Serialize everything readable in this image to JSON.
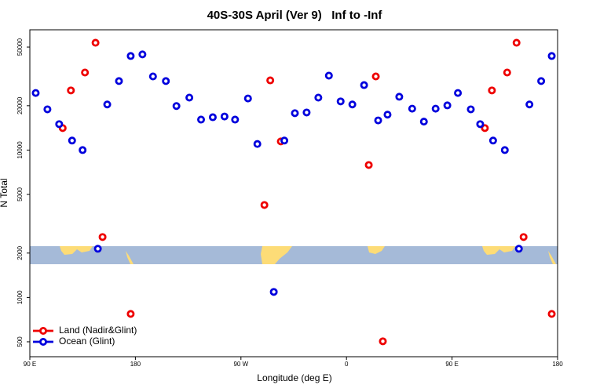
{
  "chart_data": {
    "type": "scatter",
    "title": "40S-30S April (Ver 9)   Inf to -Inf",
    "x_label": "Longitude (deg E)",
    "y_label": "N Total",
    "xlim": [
      90,
      540
    ],
    "xticks": [
      {
        "value": 90,
        "label": "90 E"
      },
      {
        "value": 180,
        "label": "180"
      },
      {
        "value": 270,
        "label": "90 W"
      },
      {
        "value": 360,
        "label": "0"
      },
      {
        "value": 450,
        "label": "90 E"
      },
      {
        "value": 540,
        "label": "180"
      }
    ],
    "ylim": [
      396,
      65500
    ],
    "yscale": "log",
    "yticks": [
      500,
      1000,
      2000,
      5000,
      10000,
      20000,
      50000
    ],
    "legend": "bottom-left",
    "series": [
      {
        "name": "Land (Nadir&Glint)",
        "color": "#ee0000",
        "x": [
          118,
          125,
          137,
          146,
          152,
          176,
          290,
          295,
          304,
          379,
          385,
          391,
          478,
          484,
          497,
          505,
          511,
          535
        ],
        "values": [
          14100,
          25400,
          33600,
          53500,
          2570,
          773,
          4240,
          29700,
          11450,
          7920,
          31600,
          504,
          14100,
          25400,
          33600,
          53500,
          2570,
          773
        ]
      },
      {
        "name": "Ocean (Glint)",
        "color": "#0000dd",
        "x": [
          95,
          105,
          115,
          126,
          135,
          148,
          156,
          166,
          176,
          186,
          195,
          206,
          215,
          226,
          236,
          246,
          256,
          265,
          276,
          284,
          298,
          307,
          316,
          326,
          336,
          345,
          355,
          365,
          375,
          387,
          395,
          405,
          416,
          426,
          436,
          446,
          455,
          466,
          474,
          485,
          495,
          507,
          516,
          526,
          535
        ],
        "values": [
          24400,
          18900,
          15000,
          11600,
          10000,
          2140,
          20400,
          29400,
          43500,
          44600,
          31600,
          29400,
          19900,
          22700,
          16100,
          16700,
          16900,
          16100,
          22400,
          11000,
          1090,
          11600,
          17800,
          18000,
          22700,
          32000,
          21400,
          20400,
          27600,
          15900,
          17400,
          23000,
          19100,
          15600,
          19100,
          20100,
          24400,
          18900,
          15000,
          11600,
          10000,
          2140,
          20400,
          29400,
          43500
        ]
      }
    ]
  }
}
